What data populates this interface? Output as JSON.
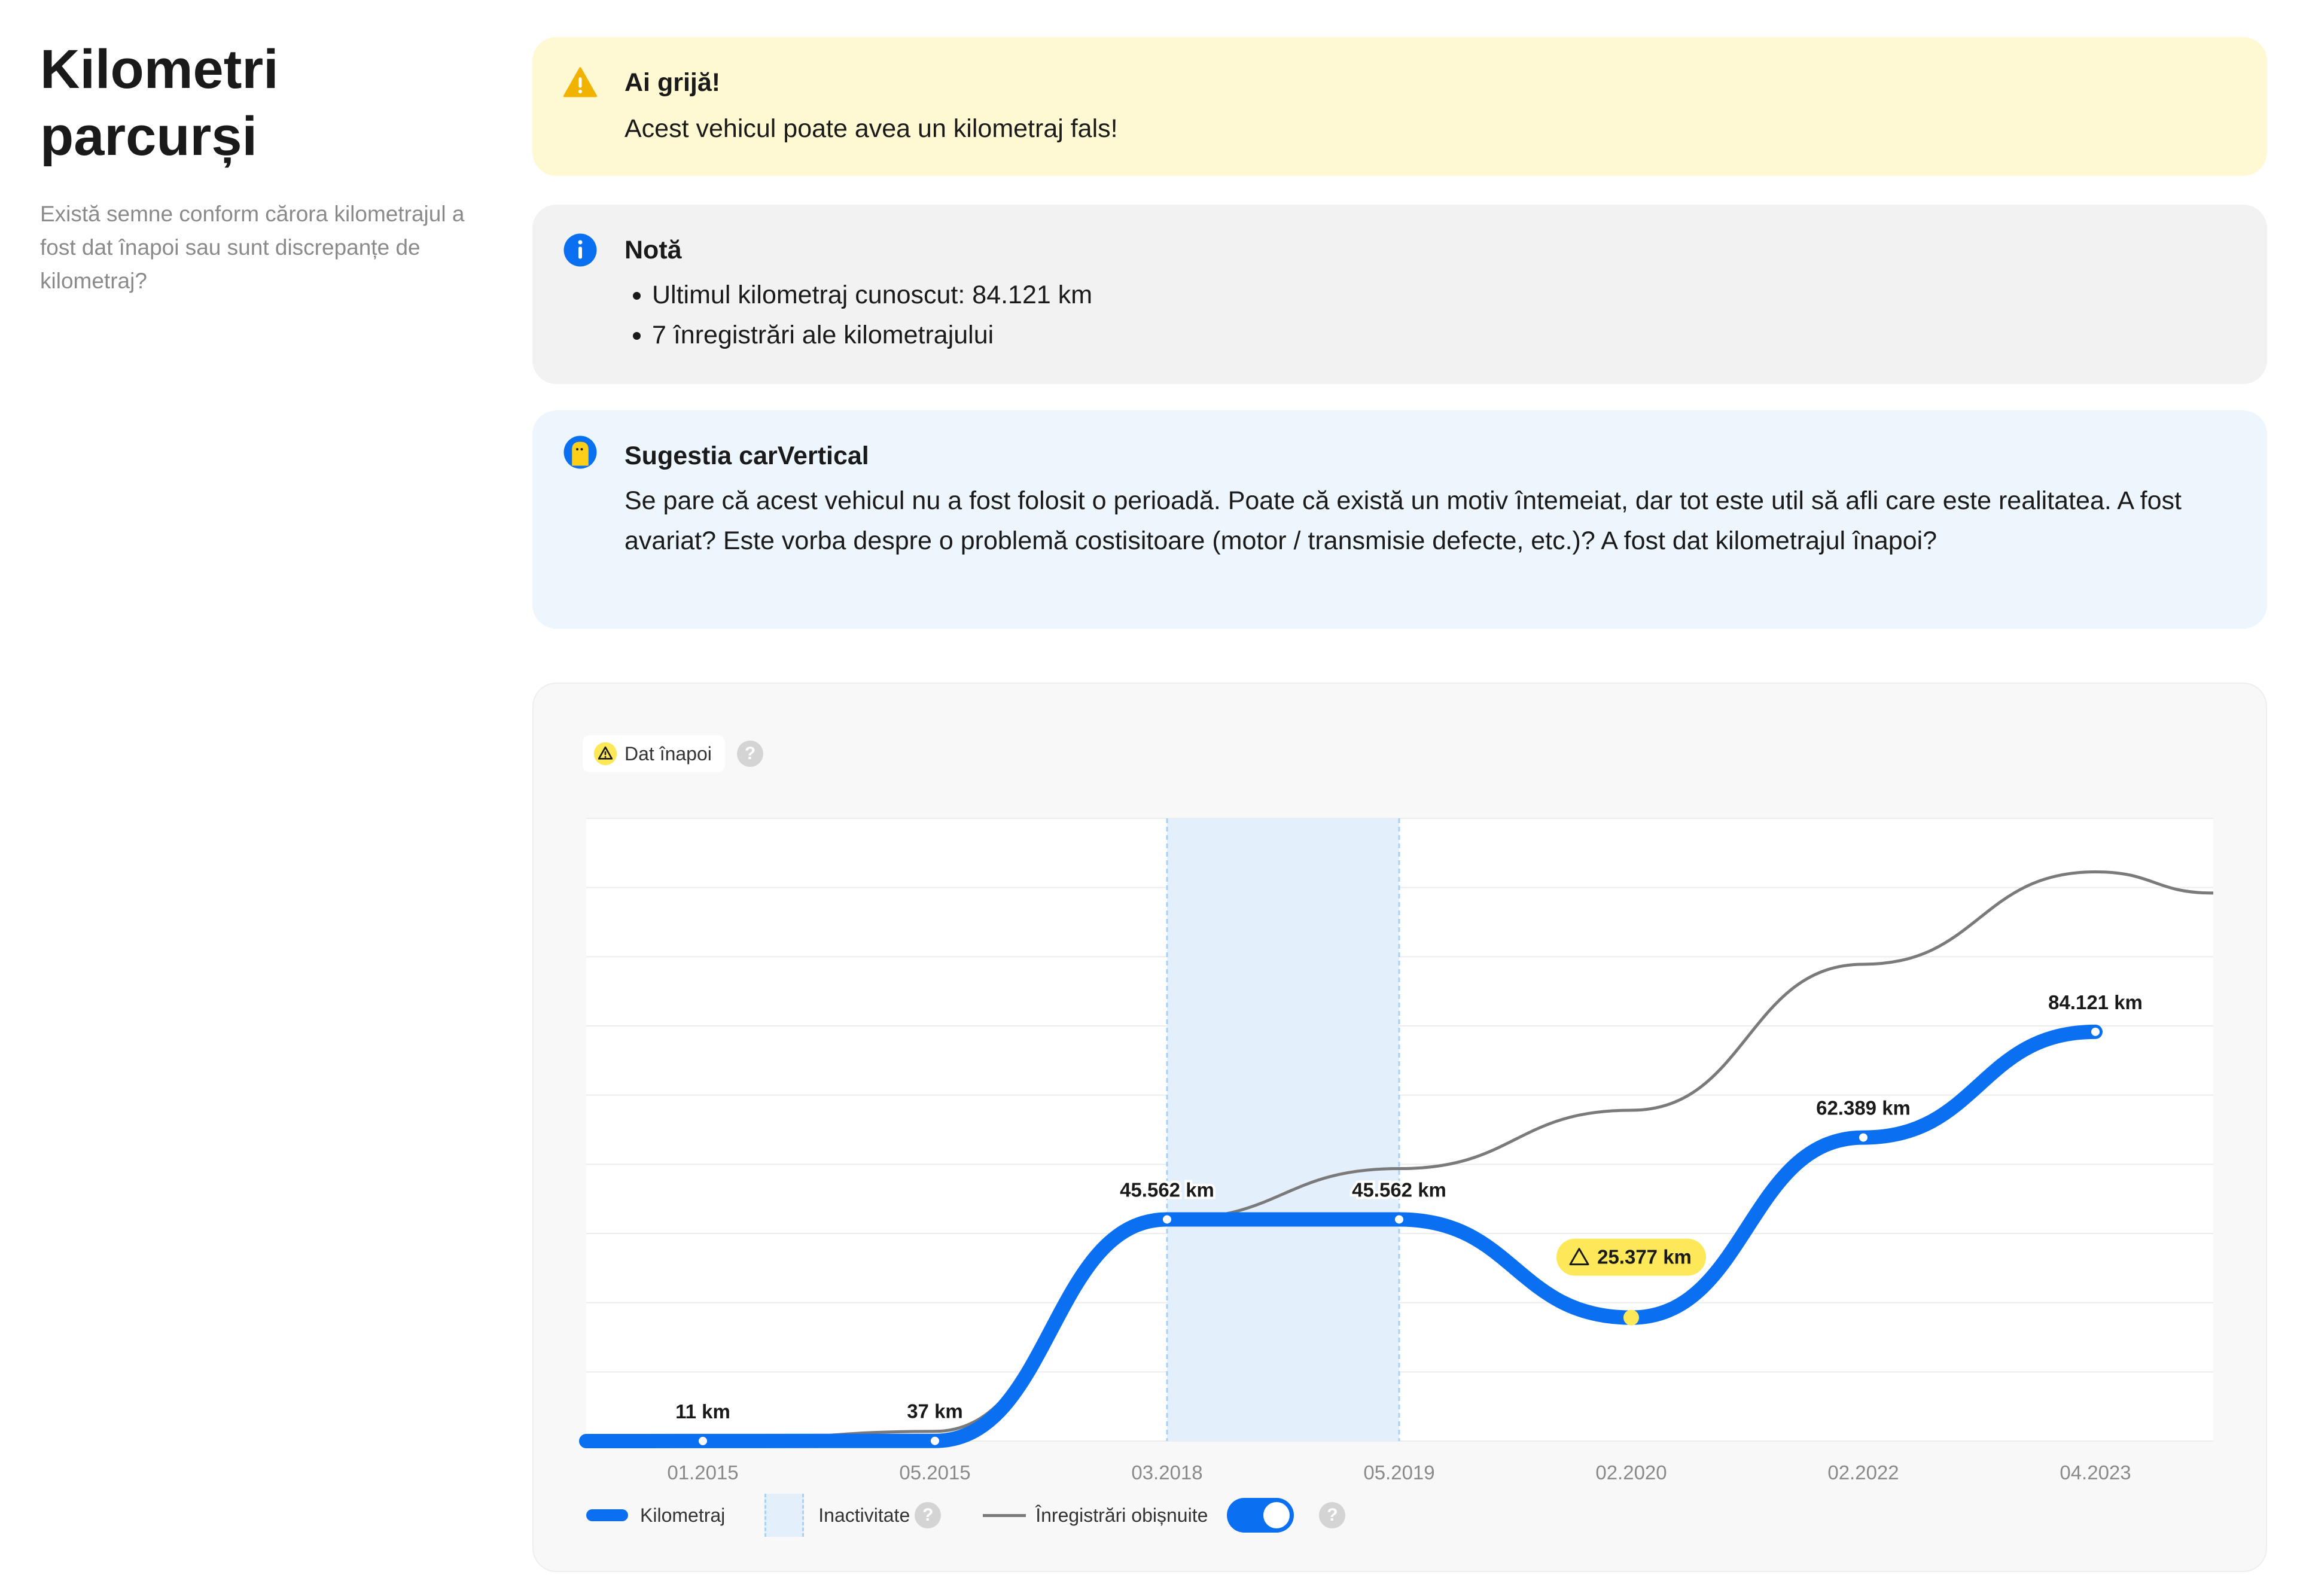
{
  "section": {
    "title_line1": "Kilometri",
    "title_line2": "parcurși",
    "subtitle": "Există semne conform cărora kilometrajul a fost dat înapoi sau sunt discrepanțe de kilometraj?"
  },
  "warning": {
    "icon": "warning-triangle-icon",
    "title": "Ai grijă!",
    "text": "Acest vehicul poate avea un kilometraj fals!"
  },
  "note": {
    "icon": "info-icon",
    "title": "Notă",
    "items": [
      "Ultimul kilometraj cunoscut: 84.121 km",
      "7 înregistrări ale kilometrajului"
    ]
  },
  "suggestion": {
    "icon": "carvertical-mascot-icon",
    "title": "Sugestia carVertical",
    "text": "Se pare că acest vehicul nu a fost folosit o perioadă. Poate că există un motiv întemeiat, dar tot este util să afli care este realitatea. A fost avariat? Este vorba despre o problemă costisitoare (motor / transmisie defecte, etc.)? A fost dat kilometrajul înapoi?"
  },
  "chart": {
    "chip_label": "Dat înapoi",
    "help_symbol": "?",
    "legend": {
      "mileage": "Kilometraj",
      "inactivity": "Inactivitate",
      "regular": "Înregistrări obișnuite",
      "regular_toggle_on": true
    },
    "colors": {
      "mileage": "#0a6ff0",
      "regular": "#7a7a7a",
      "inactivity": "#e3f0fc",
      "rollback": "#fde85a"
    }
  },
  "chart_data": {
    "type": "line",
    "categories": [
      "01.2015",
      "05.2015",
      "03.2018",
      "05.2019",
      "02.2020",
      "02.2022",
      "04.2023"
    ],
    "series": [
      {
        "name": "Kilometraj",
        "values": [
          11,
          37,
          45562,
          45562,
          25377,
          62389,
          84121
        ],
        "labels": [
          "11 km",
          "37 km",
          "45.562 km",
          "45.562 km",
          "25.377 km",
          "62.389 km",
          "84.121 km"
        ]
      },
      {
        "name": "Înregistrări obișnuite",
        "values": [
          11,
          2000,
          45562,
          56000,
          68000,
          98000,
          117000
        ]
      }
    ],
    "flagged_points": [
      "02.2020"
    ],
    "inactivity_range": [
      "03.2018",
      "05.2019"
    ],
    "ylim": [
      0,
      128000
    ],
    "grid": true
  }
}
